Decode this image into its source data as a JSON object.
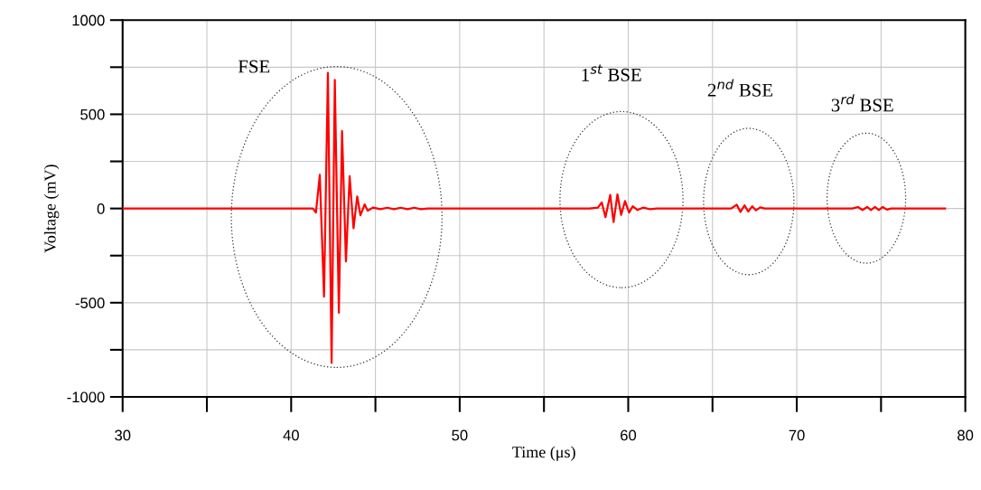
{
  "chart_data": {
    "type": "line",
    "xlabel": "Time (μs)",
    "ylabel": "Voltage (mV)",
    "xlim": [
      30,
      80
    ],
    "ylim": [
      -1000,
      1000
    ],
    "xticks": [
      30,
      {
        "value": 35,
        "label": null
      },
      40,
      {
        "value": 45,
        "label": null
      },
      50,
      {
        "value": 55,
        "label": null
      },
      60,
      {
        "value": 65,
        "label": null
      },
      70,
      {
        "value": 75,
        "label": null
      },
      80
    ],
    "yticks": [
      -1000,
      {
        "value": -750,
        "label": null
      },
      -500,
      {
        "value": -250,
        "label": null
      },
      0,
      {
        "value": 250,
        "label": null
      },
      500,
      {
        "value": 750,
        "label": null
      },
      1000
    ],
    "grid": true,
    "marker": "none",
    "line_style": "solid",
    "annotations": [
      "FSE",
      "1$^{st}$ BSE",
      "2$^{nd}$ BSE",
      "3$^{rd}$ BSE"
    ],
    "series": [
      {
        "color": "#ff0000",
        "x": [
          30,
          41.2,
          41.29,
          41.47,
          41.7,
          41.95,
          42.18,
          42.4,
          42.59,
          42.83,
          43.02,
          43.25,
          43.47,
          43.7,
          43.92,
          44.11,
          44.36,
          44.54,
          44.86,
          45.3,
          45.7,
          46.1,
          46.5,
          46.9,
          47.3,
          47.7,
          48.1,
          57.7,
          58.2,
          58.43,
          58.65,
          58.93,
          59.13,
          59.36,
          59.58,
          59.81,
          60.05,
          60.27,
          60.55,
          60.9,
          61.3,
          61.7,
          66.1,
          66.44,
          66.66,
          66.9,
          67.12,
          67.36,
          67.58,
          67.83,
          68.1,
          73.3,
          73.63,
          73.9,
          74.18,
          74.4,
          74.64,
          74.87,
          75.1,
          75.35,
          75.6,
          78.8
        ],
        "values": [
          0,
          0,
          0,
          -21,
          179,
          -468,
          720,
          -820,
          683,
          -553,
          411,
          -281,
          171,
          -105,
          64,
          -36,
          22,
          -12,
          5,
          -4,
          4,
          -4,
          4,
          -4,
          4,
          -4,
          0,
          0,
          5,
          32,
          -46,
          72,
          -72,
          75,
          -34,
          40,
          -22,
          12,
          -8,
          5,
          -4,
          0,
          0,
          20,
          -18,
          17,
          -16,
          12,
          -10,
          6,
          0,
          0,
          8,
          -8,
          8,
          -8,
          8,
          -8,
          8,
          -6,
          0,
          0
        ]
      }
    ]
  }
}
